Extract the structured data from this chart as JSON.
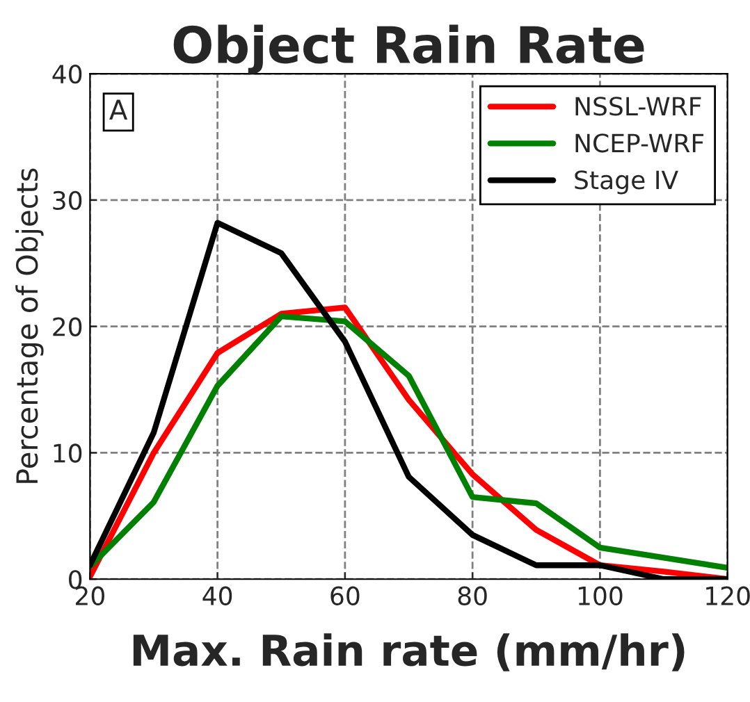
{
  "chart_data": {
    "type": "line",
    "title": "Object Rain Rate",
    "xlabel": "Max. Rain rate (mm/hr)",
    "ylabel": "Percentage of Objects",
    "x": [
      20,
      30,
      40,
      50,
      60,
      70,
      80,
      90,
      100,
      110,
      120
    ],
    "series": [
      {
        "name": "NSSL-WRF",
        "color": "#ff0000",
        "values": [
          0.2,
          10.0,
          17.9,
          21.0,
          21.5,
          14.2,
          8.3,
          3.9,
          1.1,
          0.6,
          0
        ]
      },
      {
        "name": "NCEP-WRF",
        "color": "#008000",
        "values": [
          1.0,
          6.1,
          15.3,
          20.8,
          20.4,
          16.1,
          6.5,
          6.0,
          2.5,
          1.7,
          0.9
        ]
      },
      {
        "name": "Stage IV",
        "color": "#000000",
        "values": [
          1.1,
          11.6,
          28.2,
          25.8,
          18.8,
          8.1,
          3.5,
          1.1,
          1.1,
          0,
          0
        ]
      }
    ],
    "xlim": [
      20,
      120
    ],
    "xticks": [
      20,
      40,
      60,
      80,
      100,
      120
    ],
    "ylim": [
      0,
      40
    ],
    "yticks": [
      0,
      10,
      20,
      30,
      40
    ],
    "annotations": [
      "A"
    ],
    "grid": true,
    "legend": "top right",
    "line_style": "solid",
    "marker": "none"
  }
}
